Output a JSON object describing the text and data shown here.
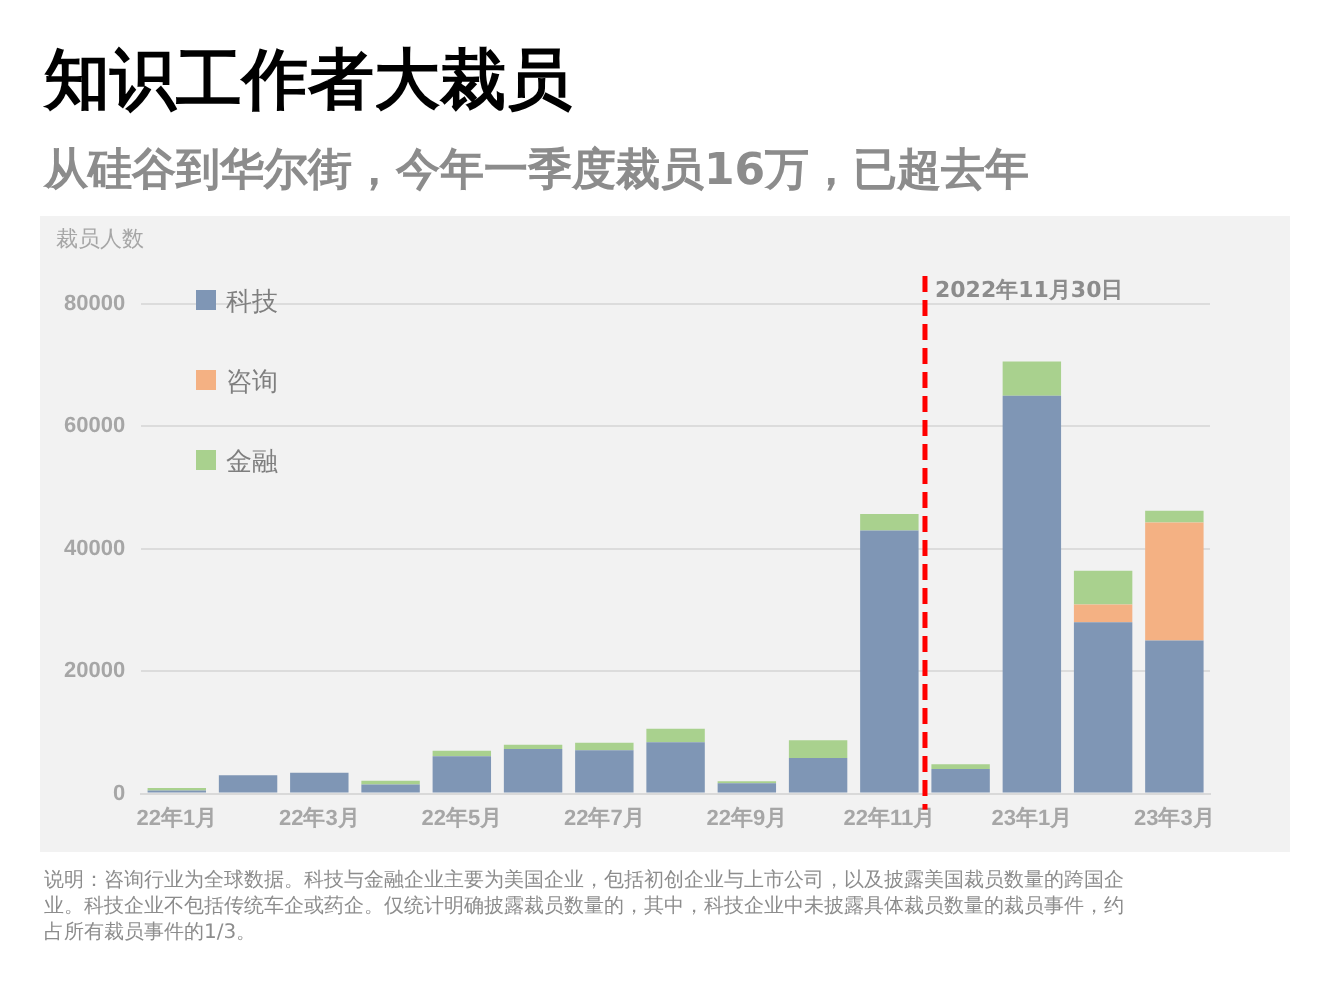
{
  "chart_data": {
    "type": "bar",
    "title": "知识工作者大裁员",
    "subtitle": "从硅谷到华尔街，今年一季度裁员16万，已超去年",
    "ylabel": "裁员人数",
    "categories": [
      "22年1月",
      null,
      "22年3月",
      null,
      "22年5月",
      null,
      "22年7月",
      null,
      "22年9月",
      null,
      "22年11月",
      null,
      "23年1月",
      null,
      "23年3月"
    ],
    "series": [
      {
        "name": "科技",
        "color": "#7f96b5",
        "values": [
          500,
          3000,
          3400,
          1500,
          6100,
          7300,
          7100,
          8400,
          1700,
          5800,
          43000,
          4000,
          65000,
          28000,
          25000
        ]
      },
      {
        "name": "咨询",
        "color": "#f4b183",
        "values": [
          0,
          0,
          0,
          0,
          0,
          0,
          0,
          0,
          0,
          0,
          0,
          0,
          0,
          2900,
          19300
        ]
      },
      {
        "name": "金融",
        "color": "#a9d18e",
        "values": [
          400,
          0,
          0,
          600,
          900,
          700,
          1200,
          2200,
          300,
          2900,
          2700,
          800,
          5600,
          5500,
          1900
        ]
      }
    ],
    "stacked": true,
    "ylim": [
      0,
      80000
    ],
    "yticks": [
      0,
      20000,
      40000,
      60000,
      80000
    ],
    "grid": "y",
    "legend": "top left",
    "ref_lines": [
      {
        "axis": "x",
        "value": "22年11月",
        "label": "2022年11月30日",
        "color": "#ff0000",
        "line_style": "dashed"
      }
    ],
    "annotations": [
      "说明：咨询行业为全球数据。科技与金融企业主要为美国企业，包括初创企业与上市公司，以及披露美国裁员数量的跨国企业。科技企业不包括传统车企或药企。仅统计明确披露裁员数量的，其中，科技企业中未披露具体裁员数量的裁员事件，约占所有裁员事件的1/3。"
    ]
  }
}
